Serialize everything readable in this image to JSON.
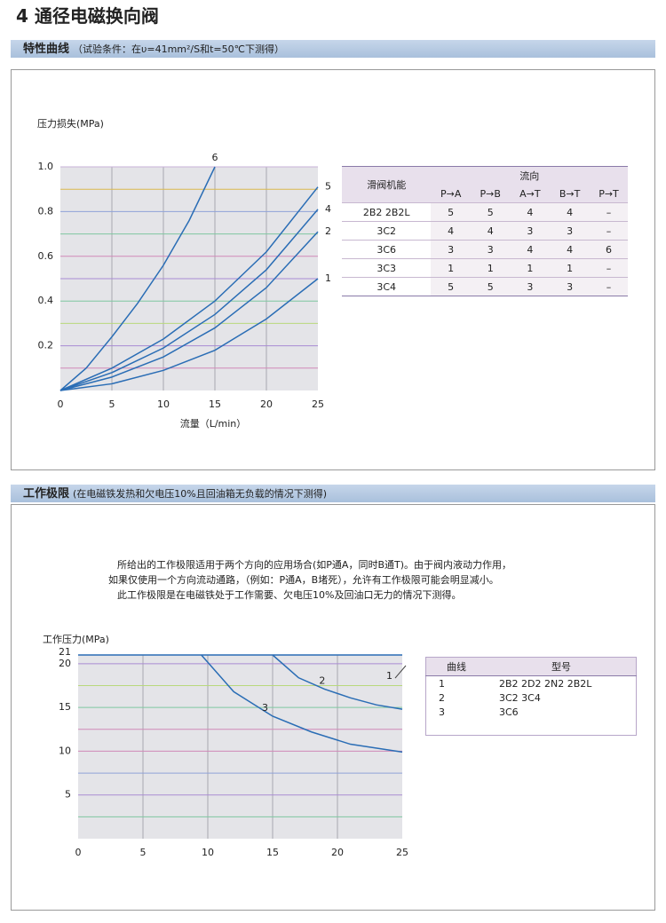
{
  "header": {
    "title": "4 通径电磁换向阀"
  },
  "section1": {
    "title": "特性曲线",
    "note": "（试验条件：在υ=41mm²/S和t=50℃下测得）"
  },
  "section2": {
    "title": "工作极限",
    "note": "(在电磁铁发热和欠电压10%且回油箱无负载的情况下测得)",
    "paragraph": [
      "所给出的工作极限适用于两个方向的应用场合(如P通A，同时B通T)。由于阀内液动力作用，",
      "如果仅使用一个方向流动通路，（例如：P通A，B堵死），允许有工作极限可能会明显减小。",
      "此工作极限是在电磁铁处于工作需要、欠电压10%及回油口无力的情况下测得。"
    ]
  },
  "table1": {
    "header": [
      "滑阀机能",
      "流向"
    ],
    "subheader": [
      "P→A",
      "P→B",
      "A→T",
      "B→T",
      "P→T"
    ],
    "rows": [
      [
        "2B2  2B2L",
        "5",
        "5",
        "4",
        "4",
        "–"
      ],
      [
        "3C2",
        "4",
        "4",
        "3",
        "3",
        "–"
      ],
      [
        "3C6",
        "3",
        "3",
        "4",
        "4",
        "6"
      ],
      [
        "3C3",
        "1",
        "1",
        "1",
        "1",
        "–"
      ],
      [
        "3C4",
        "5",
        "5",
        "3",
        "3",
        "–"
      ]
    ]
  },
  "table2": {
    "header": [
      "曲线",
      "型号"
    ],
    "rows": [
      [
        "1",
        "2B2  2D2  2N2  2B2L"
      ],
      [
        "2",
        "3C2  3C4"
      ],
      [
        "3",
        "3C6"
      ]
    ]
  },
  "chart_data": [
    {
      "type": "line",
      "y_label": "压力损失(MPa)",
      "x_label": "流量（L/min）",
      "background": "#e4e4e8",
      "xlim": [
        0,
        25
      ],
      "xticks": [
        0,
        5,
        10,
        15,
        20,
        25
      ],
      "ylim": [
        0,
        1
      ],
      "yticks": [
        0.2,
        0.4,
        0.6,
        0.8,
        {
          "value": 1,
          "label": "1.0"
        }
      ],
      "minor_yticks": [
        0.1,
        0.3,
        0.5,
        0.7,
        0.9
      ],
      "grid": true,
      "grid_colors": [
        "#a98bd3",
        "#7fc7a0",
        "#d088b8",
        "#8fa2d8",
        "#c7b0d8"
      ],
      "minor_grid_colors": [
        "#d088b8",
        "#b9d87c",
        "#a98bd3",
        "#7fc7a0",
        "#d9b84e"
      ],
      "series": [
        {
          "name": "6",
          "color": "#2a6db5",
          "x": [
            0,
            2.5,
            5,
            7.5,
            10,
            12.5,
            15
          ],
          "values": [
            0,
            0.1,
            0.24,
            0.39,
            0.56,
            0.76,
            1.0
          ]
        },
        {
          "name": "5",
          "color": "#2a6db5",
          "x": [
            0,
            5,
            10,
            15,
            20,
            25
          ],
          "values": [
            0,
            0.1,
            0.23,
            0.4,
            0.62,
            0.91
          ]
        },
        {
          "name": "4",
          "color": "#2a6db5",
          "x": [
            0,
            5,
            10,
            15,
            20,
            25
          ],
          "values": [
            0,
            0.08,
            0.19,
            0.34,
            0.54,
            0.81
          ]
        },
        {
          "name": "2",
          "color": "#2a6db5",
          "x": [
            0,
            5,
            10,
            15,
            20,
            25
          ],
          "values": [
            0,
            0.06,
            0.15,
            0.28,
            0.46,
            0.71
          ]
        },
        {
          "name": "1",
          "color": "#2a6db5",
          "x": [
            0,
            5,
            10,
            15,
            20,
            25
          ],
          "values": [
            0,
            0.03,
            0.09,
            0.18,
            0.32,
            0.5
          ]
        }
      ]
    },
    {
      "type": "line",
      "y_label": "工作压力(MPa)",
      "background": "#e4e4e8",
      "xlim": [
        0,
        25
      ],
      "xticks": [
        0,
        5,
        10,
        15,
        20,
        25
      ],
      "ylim": [
        0,
        21
      ],
      "yticks": [
        5,
        10,
        15,
        20,
        21
      ],
      "minor_yticks": [
        2.5,
        7.5,
        12.5,
        17.5
      ],
      "grid": true,
      "grid_colors": [
        "#a98bd3",
        "#d088b8",
        "#7fc7a0",
        "#a98bd3",
        "#c7b0d8"
      ],
      "minor_grid_colors": [
        "#7fc7a0",
        "#8fa2d8",
        "#d088b8",
        "#b9d87c"
      ],
      "series": [
        {
          "name": "1",
          "color": "#2a6db5",
          "x": [
            0,
            25
          ],
          "values": [
            21,
            21
          ]
        },
        {
          "name": "2",
          "color": "#2a6db5",
          "x": [
            15,
            17,
            19,
            21,
            23,
            25
          ],
          "values": [
            21,
            18.4,
            17.1,
            16.1,
            15.3,
            14.8
          ]
        },
        {
          "name": "3",
          "color": "#2a6db5",
          "x": [
            9.5,
            12,
            15,
            18,
            21,
            25
          ],
          "values": [
            21,
            16.8,
            14,
            12.2,
            10.8,
            9.9
          ]
        }
      ]
    }
  ]
}
